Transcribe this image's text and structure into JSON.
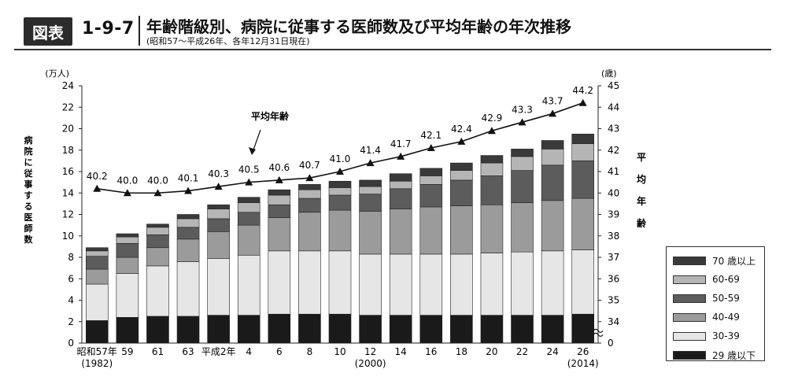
{
  "header": {
    "badge": "図表",
    "figure_number": "1-9-7",
    "title": "年齢階級別、病院に従事する医師数及び平均年齢の年次推移",
    "subtitle": "(昭和57～平成26年、各年12月31日現在)"
  },
  "chart_data": {
    "type": "bar",
    "stacked": true,
    "left_axis": {
      "unit_label": "(万人)",
      "title": "病院に従事する医師数",
      "ylim": [
        0,
        24
      ],
      "ticks": [
        0,
        2,
        4,
        6,
        8,
        10,
        12,
        14,
        16,
        18,
        20,
        22,
        24
      ]
    },
    "right_axis": {
      "unit_label": "(歳)",
      "title": "平均年齢",
      "ylim": [
        33,
        45
      ],
      "ticks": [
        "0",
        "34",
        "35",
        "36",
        "37",
        "38",
        "39",
        "40",
        "41",
        "42",
        "43",
        "44",
        "45"
      ],
      "broken": true
    },
    "categories": [
      "昭和57年",
      "59",
      "61",
      "63",
      "平成2年",
      "4",
      "6",
      "8",
      "10",
      "12",
      "14",
      "16",
      "18",
      "20",
      "22",
      "24",
      "26"
    ],
    "category_sublabels": {
      "0": "(1982)",
      "9": "(2000)",
      "16": "(2014)"
    },
    "series": [
      {
        "name": "29 歳以下",
        "color": "#1a1a1a",
        "values": [
          2.1,
          2.4,
          2.5,
          2.5,
          2.6,
          2.6,
          2.7,
          2.7,
          2.7,
          2.6,
          2.6,
          2.6,
          2.6,
          2.6,
          2.6,
          2.6,
          2.7
        ]
      },
      {
        "name": "30-39",
        "color": "#e6e6e6",
        "values": [
          3.4,
          4.1,
          4.7,
          5.1,
          5.3,
          5.6,
          5.9,
          5.9,
          5.9,
          5.7,
          5.7,
          5.7,
          5.7,
          5.8,
          5.9,
          6.0,
          6.0
        ]
      },
      {
        "name": "40-49",
        "color": "#9b9b9b",
        "values": [
          1.4,
          1.5,
          1.7,
          2.1,
          2.5,
          2.8,
          3.1,
          3.6,
          3.8,
          4.0,
          4.2,
          4.4,
          4.5,
          4.5,
          4.6,
          4.7,
          4.8
        ]
      },
      {
        "name": "50-59",
        "color": "#5c5c5c",
        "values": [
          1.2,
          1.3,
          1.2,
          1.1,
          1.2,
          1.2,
          1.2,
          1.3,
          1.4,
          1.6,
          1.9,
          2.1,
          2.4,
          2.7,
          3.0,
          3.3,
          3.5
        ]
      },
      {
        "name": "60-69",
        "color": "#b5b5b5",
        "values": [
          0.5,
          0.6,
          0.7,
          0.8,
          0.9,
          0.9,
          0.9,
          0.8,
          0.7,
          0.7,
          0.7,
          0.8,
          0.9,
          1.2,
          1.3,
          1.5,
          1.6
        ]
      },
      {
        "name": "70 歳以上",
        "color": "#3a3a3a",
        "values": [
          0.3,
          0.3,
          0.3,
          0.4,
          0.4,
          0.5,
          0.5,
          0.5,
          0.6,
          0.6,
          0.7,
          0.7,
          0.7,
          0.7,
          0.7,
          0.8,
          0.9
        ]
      }
    ],
    "line": {
      "label": "平均年齢",
      "values": [
        40.2,
        40.0,
        40.0,
        40.1,
        40.3,
        40.5,
        40.6,
        40.7,
        41.0,
        41.4,
        41.7,
        42.1,
        42.4,
        42.9,
        43.3,
        43.7,
        44.2
      ]
    },
    "legend_order": [
      "70 歳以上",
      "60-69",
      "50-59",
      "40-49",
      "30-39",
      "29 歳以下"
    ],
    "legend_position": "right",
    "grid": false
  }
}
